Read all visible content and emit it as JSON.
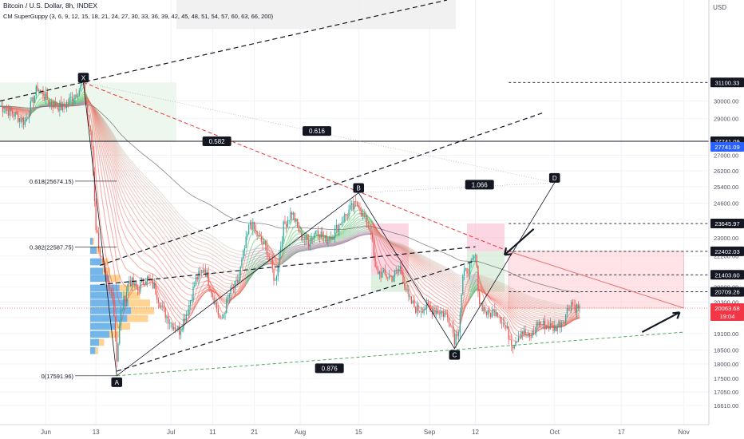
{
  "header": {
    "symbol_line": "Bitcoin / U.S. Dollar, 8h, INDEX",
    "indicator_line": "CM SuperGuppy (3, 6, 9, 12, 15, 18, 21, 24, 27, 30, 33, 36, 39, 42, 45, 48, 51, 54, 57, 60, 63, 66, 200)",
    "currency": "USD"
  },
  "colors": {
    "up": "#26a69a",
    "down": "#ef5350",
    "ribbon_bear": "#f44336",
    "ribbon_bull": "#4caf50",
    "price_tag": "#f23645",
    "label_bg": "#131722",
    "grid": "#f0f3fa",
    "green_trend": "#43a047",
    "red_trend": "#e53935"
  },
  "chart_data": {
    "type": "candlestick",
    "title": "Bitcoin / U.S. Dollar, 8h, INDEX",
    "x_axis": {
      "ticks": [
        {
          "label": "Jun",
          "date": "2022-06-01"
        },
        {
          "label": "13",
          "date": "2022-06-13"
        },
        {
          "label": "Jul",
          "date": "2022-07-01"
        },
        {
          "label": "11",
          "date": "2022-07-11"
        },
        {
          "label": "21",
          "date": "2022-07-21"
        },
        {
          "label": "Aug",
          "date": "2022-08-01"
        },
        {
          "label": "15",
          "date": "2022-08-15"
        },
        {
          "label": "Sep",
          "date": "2022-09-01"
        },
        {
          "label": "12",
          "date": "2022-09-12"
        },
        {
          "label": "Oct",
          "date": "2022-10-01"
        },
        {
          "label": "17",
          "date": "2022-10-17"
        },
        {
          "label": "Nov",
          "date": "2022-11-01"
        }
      ],
      "range": [
        "2022-05-21",
        "2022-11-07"
      ]
    },
    "y_axis": {
      "scale": "log",
      "range": [
        16000,
        36500
      ],
      "ticks": [
        "30000.00",
        "29000.00",
        "27000.00",
        "26200.00",
        "25400.00",
        "24600.00",
        "23800.00",
        "23000.00",
        "22200.00",
        "21400.00",
        "20900.00",
        "20300.00",
        "19700.00",
        "19100.00",
        "18500.00",
        "18000.00",
        "17500.00",
        "17050.00",
        "16610.00"
      ],
      "tick_values": [
        30000,
        29000,
        27000,
        26200,
        25400,
        24600,
        23800,
        23000,
        22200,
        21400,
        20900,
        20300,
        19700,
        19100,
        18500,
        18000,
        17500,
        17050,
        16610
      ]
    },
    "price_levels": [
      {
        "label": "31100.33",
        "value": 31100.33,
        "style": "dashed"
      },
      {
        "label": "27741.09",
        "value": 27741.09,
        "style": "solid"
      },
      {
        "label": "23645.97",
        "value": 23645.97,
        "style": "dashed"
      },
      {
        "label": "22402.03",
        "value": 22402.03,
        "style": "dashed"
      },
      {
        "label": "21403.60",
        "value": 21403.6,
        "style": "dashed"
      },
      {
        "label": "20709.26",
        "value": 20709.26,
        "style": "dashed"
      }
    ],
    "current_price": {
      "label": "20063.68",
      "countdown": "19:04",
      "value": 20063.68
    },
    "pattern_points": [
      {
        "label": "X",
        "date": "2022-06-10",
        "value": 31100
      },
      {
        "label": "A",
        "date": "2022-06-18",
        "value": 17591.96
      },
      {
        "label": "B",
        "date": "2022-08-15",
        "value": 25100
      },
      {
        "label": "C",
        "date": "2022-09-07",
        "value": 18550
      },
      {
        "label": "D",
        "date": "2022-10-01",
        "value": 25600
      }
    ],
    "ratio_labels": [
      {
        "label": "0.582",
        "date": "2022-07-12",
        "value": 27741
      },
      {
        "label": "0.616",
        "date": "2022-08-05",
        "value": 28300
      },
      {
        "label": "1.066",
        "date": "2022-09-13",
        "value": 25500
      },
      {
        "label": "0.876",
        "date": "2022-08-08",
        "value": 17850
      }
    ],
    "fib_levels": [
      {
        "label": "0.618(25674.15)",
        "value": 25674.15
      },
      {
        "label": "0.382(22587.75)",
        "value": 22587.75
      },
      {
        "label": "0(17591.96)",
        "value": 17591.96
      }
    ],
    "series": [
      {
        "name": "BTCUSD",
        "points": [
          [
            "2022-05-21",
            29700
          ],
          [
            "2022-05-24",
            29300
          ],
          [
            "2022-05-27",
            28800
          ],
          [
            "2022-05-30",
            30800
          ],
          [
            "2022-06-02",
            29900
          ],
          [
            "2022-06-05",
            29600
          ],
          [
            "2022-06-08",
            30400
          ],
          [
            "2022-06-10",
            31000
          ],
          [
            "2022-06-11",
            29200
          ],
          [
            "2022-06-12",
            27500
          ],
          [
            "2022-06-13",
            23500
          ],
          [
            "2022-06-14",
            22300
          ],
          [
            "2022-06-15",
            21500
          ],
          [
            "2022-06-16",
            20800
          ],
          [
            "2022-06-17",
            20600
          ],
          [
            "2022-06-18",
            18200
          ],
          [
            "2022-06-19",
            19900
          ],
          [
            "2022-06-21",
            21200
          ],
          [
            "2022-06-23",
            20800
          ],
          [
            "2022-06-25",
            21300
          ],
          [
            "2022-06-27",
            20900
          ],
          [
            "2022-06-29",
            20000
          ],
          [
            "2022-07-01",
            19500
          ],
          [
            "2022-07-03",
            19200
          ],
          [
            "2022-07-05",
            20000
          ],
          [
            "2022-07-07",
            21200
          ],
          [
            "2022-07-09",
            21700
          ],
          [
            "2022-07-11",
            20600
          ],
          [
            "2022-07-13",
            19500
          ],
          [
            "2022-07-15",
            20600
          ],
          [
            "2022-07-17",
            21100
          ],
          [
            "2022-07-19",
            22800
          ],
          [
            "2022-07-20",
            23700
          ],
          [
            "2022-07-22",
            23000
          ],
          [
            "2022-07-24",
            22500
          ],
          [
            "2022-07-26",
            21100
          ],
          [
            "2022-07-28",
            23500
          ],
          [
            "2022-07-30",
            24200
          ],
          [
            "2022-08-01",
            23100
          ],
          [
            "2022-08-03",
            22800
          ],
          [
            "2022-08-05",
            23400
          ],
          [
            "2022-08-07",
            22900
          ],
          [
            "2022-08-09",
            23200
          ],
          [
            "2022-08-11",
            23800
          ],
          [
            "2022-08-13",
            24300
          ],
          [
            "2022-08-15",
            24600
          ],
          [
            "2022-08-16",
            24000
          ],
          [
            "2022-08-18",
            23300
          ],
          [
            "2022-08-19",
            21600
          ],
          [
            "2022-08-21",
            21400
          ],
          [
            "2022-08-23",
            21300
          ],
          [
            "2022-08-25",
            21700
          ],
          [
            "2022-08-27",
            20400
          ],
          [
            "2022-08-29",
            20000
          ],
          [
            "2022-08-31",
            20100
          ],
          [
            "2022-09-02",
            20000
          ],
          [
            "2022-09-04",
            19900
          ],
          [
            "2022-09-06",
            19600
          ],
          [
            "2022-09-07",
            18900
          ],
          [
            "2022-09-08",
            19300
          ],
          [
            "2022-09-09",
            21300
          ],
          [
            "2022-09-10",
            21600
          ],
          [
            "2022-09-11",
            21800
          ],
          [
            "2022-09-12",
            22200
          ],
          [
            "2022-09-13",
            20300
          ],
          [
            "2022-09-15",
            19800
          ],
          [
            "2022-09-17",
            20000
          ],
          [
            "2022-09-19",
            19400
          ],
          [
            "2022-09-21",
            18700
          ],
          [
            "2022-09-23",
            19200
          ],
          [
            "2022-09-25",
            18900
          ],
          [
            "2022-09-27",
            19500
          ],
          [
            "2022-09-29",
            19400
          ],
          [
            "2022-10-01",
            19300
          ],
          [
            "2022-10-03",
            19600
          ],
          [
            "2022-10-05",
            20300
          ],
          [
            "2022-10-06",
            20100
          ],
          [
            "2022-10-07",
            20063.68
          ]
        ]
      }
    ]
  }
}
